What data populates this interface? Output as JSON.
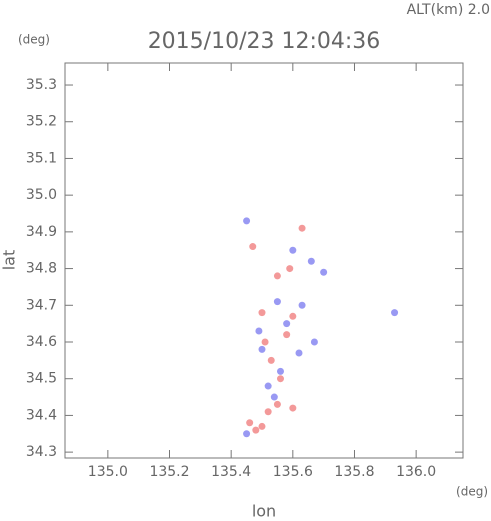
{
  "chart_data": {
    "type": "scatter",
    "title": "2015/10/23 12:04:36",
    "annotation": "ALT(km) 2.0",
    "xlabel": "lon",
    "ylabel": "lat",
    "xunit": "(deg)",
    "yunit": "(deg)",
    "xlim": [
      134.861,
      136.152
    ],
    "ylim": [
      34.284,
      35.36
    ],
    "xticks": [
      {
        "value": 135.0,
        "label": "135.0"
      },
      135.2,
      135.4,
      135.6,
      135.8,
      {
        "value": 136.0,
        "label": "136.0"
      }
    ],
    "yticks": [
      34.3,
      34.4,
      34.5,
      34.6,
      34.7,
      34.8,
      34.9,
      {
        "value": 35.0,
        "label": "35.0"
      },
      35.1,
      35.2,
      35.3
    ],
    "series": [
      {
        "color": "#f08080",
        "x": [
          135.48,
          135.5,
          135.46,
          135.52,
          135.55,
          135.6,
          135.56,
          135.53,
          135.51,
          135.58,
          135.6,
          135.5,
          135.47,
          135.63,
          135.55,
          135.59
        ],
        "values": [
          34.36,
          34.37,
          34.38,
          34.41,
          34.43,
          34.42,
          34.5,
          34.55,
          34.6,
          34.62,
          34.67,
          34.68,
          34.86,
          34.91,
          34.78,
          34.8
        ]
      },
      {
        "color": "#8080f0",
        "x": [
          135.52,
          135.56,
          135.5,
          135.62,
          135.58,
          135.55,
          135.63,
          135.49,
          135.66,
          135.7,
          135.93,
          135.45,
          135.6,
          135.54,
          135.45,
          135.67
        ],
        "values": [
          34.48,
          34.52,
          34.58,
          34.57,
          34.65,
          34.71,
          34.7,
          34.63,
          34.82,
          34.79,
          34.68,
          34.93,
          34.85,
          34.45,
          34.35,
          34.6
        ]
      }
    ]
  }
}
